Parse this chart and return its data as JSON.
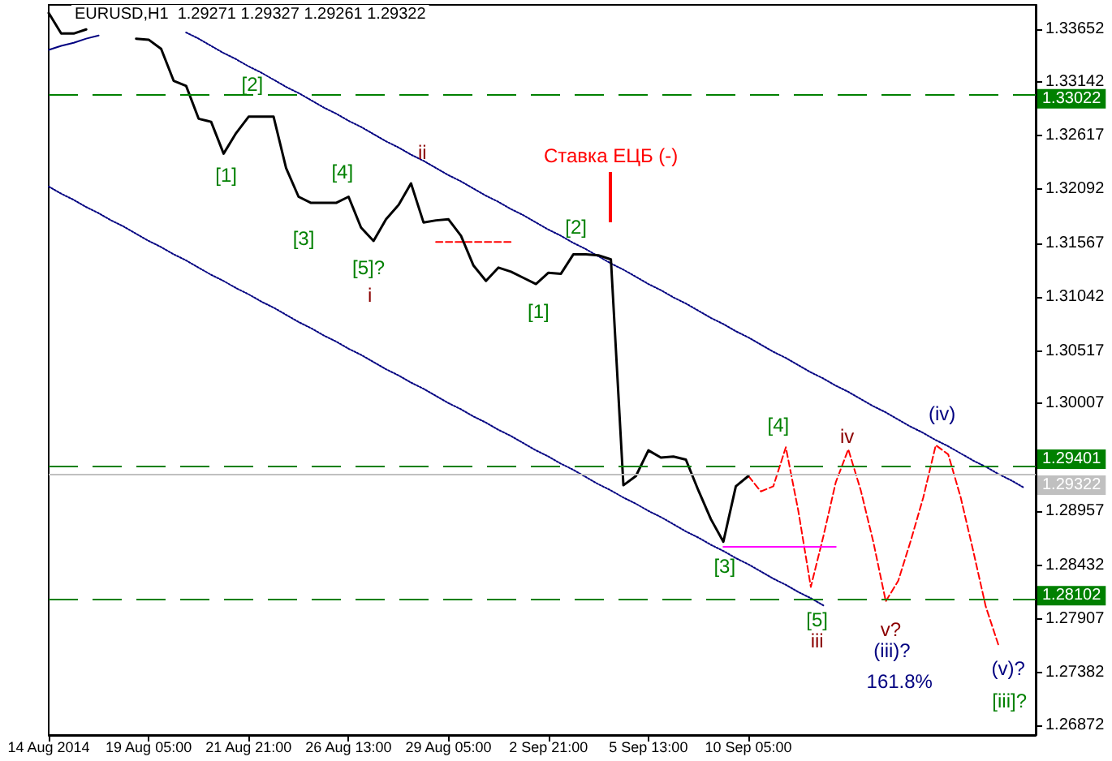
{
  "chart_data": {
    "type": "line",
    "title": "EURUSD,H1  1.29271 1.29327 1.29261 1.29322",
    "categories": [
      "14 Aug 2014",
      null,
      null,
      null,
      null,
      null,
      null,
      null,
      "19 Aug 05:00",
      null,
      null,
      null,
      null,
      null,
      null,
      null,
      "21 Aug 21:00",
      null,
      null,
      null,
      null,
      null,
      null,
      null,
      "26 Aug 13:00",
      null,
      null,
      null,
      null,
      null,
      null,
      null,
      "29 Aug 05:00",
      null,
      null,
      null,
      null,
      null,
      null,
      null,
      "2 Sep 21:00",
      null,
      null,
      null,
      null,
      null,
      null,
      null,
      "5 Sep 13:00",
      null,
      null,
      null,
      null,
      null,
      null,
      null,
      "10 Sep 05:00",
      null,
      null,
      null,
      null,
      null,
      null,
      null,
      null,
      null,
      null,
      null,
      null,
      null,
      null,
      null,
      null,
      null,
      null,
      null,
      null,
      null,
      null,
      null
    ],
    "ylim": [
      1.26777,
      1.33889
    ],
    "yticks": [
      1.26872,
      1.27382,
      1.27907,
      1.28432,
      1.28957,
      1.30007,
      1.30517,
      1.31042,
      1.31567,
      1.32092,
      1.32617,
      1.33142,
      1.33652
    ],
    "grid": false,
    "series": [
      {
        "color": "#000000",
        "line_style": "solid",
        "values": [
          1.3381,
          1.3361,
          1.3361,
          1.3365,
          null,
          null,
          null,
          1.3356,
          1.3355,
          1.3346,
          1.3315,
          1.331,
          1.3278,
          1.3275,
          1.3244,
          1.3264,
          1.328,
          1.328,
          1.328,
          1.323,
          1.3202,
          1.3196,
          1.3196,
          1.3196,
          1.3202,
          1.3172,
          1.3159,
          1.318,
          1.3194,
          1.3215,
          1.3177,
          1.3179,
          1.318,
          1.3164,
          1.3135,
          1.312,
          1.3133,
          1.3129,
          1.3123,
          1.3117,
          1.3128,
          1.3127,
          1.3146,
          1.3146,
          1.3145,
          1.3141,
          1.2921,
          1.293,
          1.2955,
          1.2948,
          1.2949,
          1.2946,
          1.2916,
          1.2888,
          1.2866,
          1.292,
          1.293,
          null,
          null,
          null,
          null,
          null,
          null,
          null,
          null,
          null,
          null,
          null,
          null,
          null,
          null,
          null,
          null,
          null,
          null,
          null,
          null,
          null,
          null,
          null
        ]
      },
      {
        "color": "#ff0000",
        "line_style": "dashed",
        "values": [
          null,
          null,
          null,
          null,
          null,
          null,
          null,
          null,
          null,
          null,
          null,
          null,
          null,
          null,
          null,
          null,
          null,
          null,
          null,
          null,
          null,
          null,
          null,
          null,
          null,
          null,
          null,
          null,
          null,
          null,
          null,
          null,
          null,
          null,
          null,
          null,
          null,
          null,
          null,
          null,
          null,
          null,
          null,
          null,
          null,
          null,
          null,
          null,
          null,
          null,
          null,
          null,
          null,
          null,
          null,
          null,
          1.293,
          1.2915,
          1.292,
          1.2958,
          1.2896,
          1.2822,
          1.2871,
          1.2924,
          1.2956,
          1.2916,
          1.2866,
          1.2808,
          1.2828,
          1.2867,
          1.2909,
          1.296,
          1.2951,
          1.2909,
          1.2857,
          1.2803,
          1.2766,
          null,
          null,
          null
        ]
      },
      {
        "color": "#000080",
        "line_style": "dotted",
        "values": [
          null,
          null,
          null,
          null,
          null,
          null,
          null,
          null,
          null,
          null,
          null,
          1.3362,
          1.3356,
          1.3349,
          1.3342,
          1.3336,
          1.3329,
          1.3323,
          1.3316,
          1.3309,
          1.3303,
          1.3296,
          1.3289,
          1.3283,
          1.3276,
          1.327,
          1.3263,
          1.3256,
          1.325,
          1.3243,
          1.3237,
          1.323,
          1.3223,
          1.3217,
          1.321,
          1.3203,
          1.3197,
          1.319,
          1.3184,
          1.3177,
          1.317,
          1.3164,
          1.3157,
          1.3151,
          1.3144,
          1.3137,
          1.3131,
          1.3124,
          1.3117,
          1.3111,
          1.3104,
          1.3098,
          1.3091,
          1.3084,
          1.3078,
          1.3071,
          1.3065,
          1.3058,
          1.3051,
          1.3045,
          1.3038,
          1.3031,
          1.3025,
          1.3018,
          1.3012,
          1.3005,
          1.2998,
          1.2992,
          1.2985,
          1.2978,
          1.2972,
          1.2965,
          1.2959,
          1.2952,
          1.2945,
          1.2939,
          1.2932,
          1.2926,
          1.2919,
          null
        ]
      },
      {
        "color": "#000080",
        "line_style": "dotted",
        "values": [
          1.3212,
          1.3205,
          1.3199,
          1.3192,
          1.3186,
          1.3179,
          1.3173,
          1.3166,
          1.3159,
          1.3153,
          1.3146,
          1.314,
          1.3133,
          1.3126,
          1.312,
          1.3113,
          1.3107,
          1.31,
          1.3094,
          1.3087,
          1.308,
          1.3074,
          1.3067,
          1.3061,
          1.3054,
          1.3048,
          1.3041,
          1.3034,
          1.3028,
          1.3021,
          1.3015,
          1.3008,
          1.3001,
          1.2995,
          1.2988,
          1.2982,
          1.2975,
          1.2969,
          1.2962,
          1.2955,
          1.2949,
          1.2942,
          1.2936,
          1.2929,
          1.2922,
          1.2916,
          1.2909,
          1.2903,
          1.2896,
          1.289,
          1.2883,
          1.2876,
          1.287,
          1.2863,
          1.2857,
          1.285,
          1.2844,
          1.2837,
          1.283,
          1.2824,
          1.2817,
          1.2811,
          1.2804,
          null,
          null,
          null,
          null,
          null,
          null,
          null,
          null,
          null,
          null,
          null,
          null,
          null,
          null,
          null,
          null,
          null
        ]
      },
      {
        "color": "#000080",
        "line_style": "solid",
        "values": [
          1.3345,
          1.3349,
          1.3352,
          1.3356,
          1.3359,
          null,
          null,
          null,
          null,
          null,
          null,
          null,
          null,
          null,
          null,
          null,
          null,
          null,
          null,
          null,
          null,
          null,
          null,
          null,
          null,
          null,
          null,
          null,
          null,
          null,
          null,
          null,
          null,
          null,
          null,
          null,
          null,
          null,
          null,
          null,
          null,
          null,
          null,
          null,
          null,
          null,
          null,
          null,
          null,
          null,
          null,
          null,
          null,
          null,
          null,
          null,
          null,
          null,
          null,
          null,
          null,
          null,
          null,
          null,
          null,
          null,
          null,
          null,
          null,
          null,
          null,
          null,
          null,
          null,
          null,
          null,
          null,
          null,
          null,
          null
        ]
      },
      {
        "color": "#ff0000",
        "line_style": "dashed",
        "values": [
          null,
          null,
          null,
          null,
          null,
          null,
          null,
          null,
          null,
          null,
          null,
          null,
          null,
          null,
          null,
          null,
          null,
          null,
          null,
          null,
          null,
          null,
          null,
          null,
          null,
          null,
          null,
          null,
          null,
          null,
          null,
          1.3158,
          1.3158,
          1.3158,
          1.3158,
          1.3158,
          1.3158,
          1.3158,
          null,
          null,
          null,
          null,
          null,
          null,
          null,
          null,
          null,
          null,
          null,
          null,
          null,
          null,
          null,
          null,
          null,
          null,
          null,
          null,
          null,
          null,
          null,
          null,
          null,
          null,
          null,
          null,
          null,
          null,
          null,
          null,
          null,
          null,
          null,
          null,
          null,
          null,
          null,
          null,
          null,
          null
        ]
      },
      {
        "color": "#ff00ff",
        "line_style": "solid",
        "values": [
          null,
          null,
          null,
          null,
          null,
          null,
          null,
          null,
          null,
          null,
          null,
          null,
          null,
          null,
          null,
          null,
          null,
          null,
          null,
          null,
          null,
          null,
          null,
          null,
          null,
          null,
          null,
          null,
          null,
          null,
          null,
          null,
          null,
          null,
          null,
          null,
          null,
          null,
          null,
          null,
          null,
          null,
          null,
          null,
          null,
          null,
          null,
          null,
          null,
          null,
          null,
          null,
          null,
          null,
          1.2861,
          1.2861,
          1.2861,
          1.2861,
          1.2861,
          1.2861,
          1.2861,
          1.2861,
          1.2861,
          1.2861,
          null,
          null,
          null,
          null,
          null,
          null,
          null,
          null,
          null,
          null,
          null,
          null,
          null,
          null,
          null,
          null
        ]
      }
    ],
    "ref_lines": [
      {
        "axis": "y",
        "value": 1.33022,
        "label": "1.33022",
        "color": "#008000",
        "line_style": "dashed"
      },
      {
        "axis": "y",
        "value": 1.29322,
        "label": "1.29322",
        "color": "#c0c0c0",
        "line_style": "solid"
      },
      {
        "axis": "y",
        "value": 1.29401,
        "label": "1.29401",
        "color": "#008000",
        "line_style": "dashed"
      },
      {
        "axis": "y",
        "value": 1.28102,
        "label": "1.28102",
        "color": "#008000",
        "line_style": "dashed"
      }
    ],
    "annotations": [
      "[1]",
      "[2]",
      "[3]",
      "[4]",
      "[5]?",
      "i",
      "ii",
      "[1]",
      "[2]",
      "Ставка ЕЦБ (-)",
      "[3]",
      "[4]",
      "iv",
      "[5]",
      "iii",
      "v?",
      "(iii)?",
      "161.8%",
      "(iv)",
      "(v)?",
      "[iii]?"
    ]
  }
}
